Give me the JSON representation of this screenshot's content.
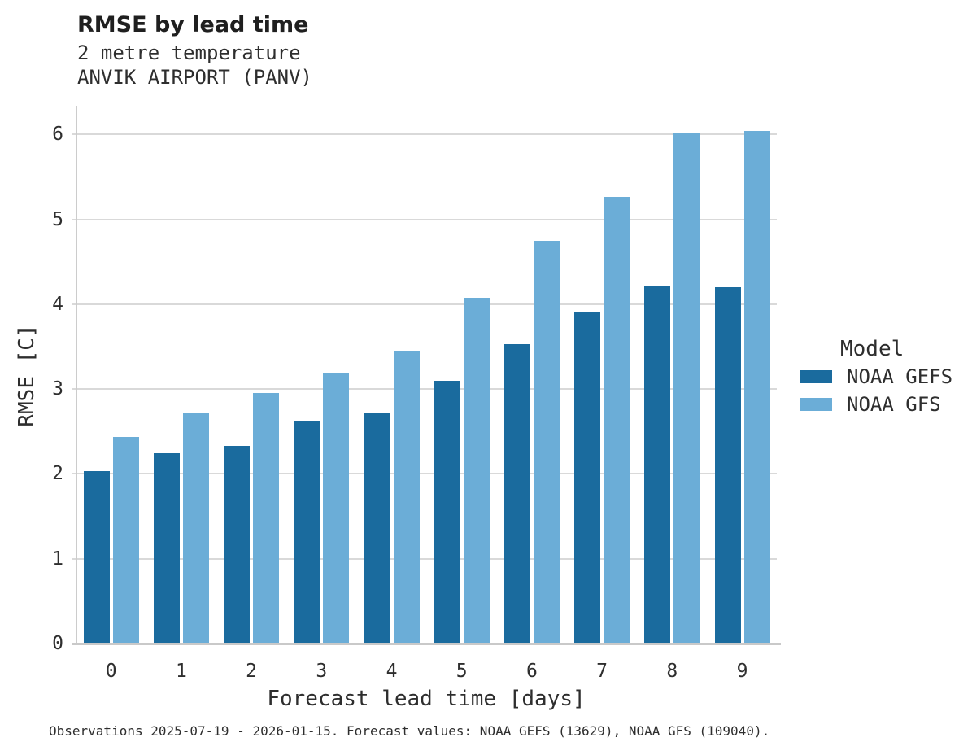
{
  "chart_data": {
    "type": "bar",
    "title": "RMSE by lead time",
    "subtitle": [
      "2 metre temperature",
      "ANVIK AIRPORT (PANV)"
    ],
    "categories": [
      0,
      1,
      2,
      3,
      4,
      5,
      6,
      7,
      8,
      9
    ],
    "series": [
      {
        "name": "NOAA GEFS",
        "color": "#1a6b9e",
        "values": [
          2.03,
          2.24,
          2.33,
          2.62,
          2.71,
          3.1,
          3.53,
          3.91,
          4.22,
          4.2
        ]
      },
      {
        "name": "NOAA GFS",
        "color": "#6badd7",
        "values": [
          2.44,
          2.71,
          2.95,
          3.19,
          3.45,
          4.07,
          4.75,
          5.26,
          6.02,
          6.04
        ]
      }
    ],
    "xlabel": "Forecast lead time [days]",
    "ylabel": "RMSE [C]",
    "ylim": [
      0,
      6
    ],
    "yticks": [
      0,
      1,
      2,
      3,
      4,
      5,
      6
    ],
    "grid": "horizontal",
    "legend": {
      "title": "Model",
      "position": "right"
    }
  },
  "footer": {
    "caption": "Observations 2025-07-19 - 2026-01-15. Forecast values: NOAA GEFS (13629), NOAA GFS (109040)."
  },
  "colors": {
    "grid": "#d9d9d9",
    "axis_spine": "#cccccc",
    "axis_bottom": "#c9c9c9",
    "text": "#2e2e2e",
    "title_text": "#1f1f1f"
  }
}
